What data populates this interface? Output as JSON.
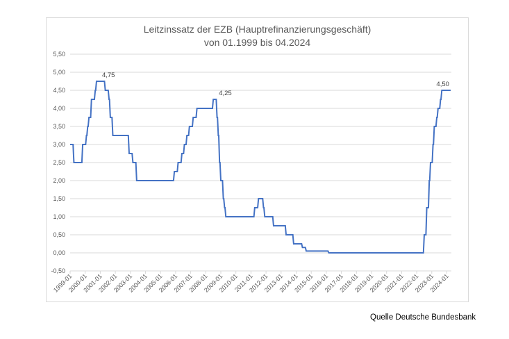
{
  "chart_data": {
    "type": "line",
    "title": "Leitzinssatz der EZB (Hauptrefinanzierungsgeschäft)",
    "subtitle": "von 01.1999 bis 04.2024",
    "xlabel": "",
    "ylabel": "",
    "ylim": [
      -0.5,
      5.5
    ],
    "yticks": [
      "-0,50",
      "0,00",
      "0,50",
      "1,00",
      "1,50",
      "2,00",
      "2,50",
      "3,00",
      "3,50",
      "4,00",
      "4,50",
      "5,00",
      "5,50"
    ],
    "ytick_values": [
      -0.5,
      0,
      0.5,
      1,
      1.5,
      2,
      2.5,
      3,
      3.5,
      4,
      4.5,
      5,
      5.5
    ],
    "xticks": [
      "1999-01",
      "2000-01",
      "2001-01",
      "2002-01",
      "2003-01",
      "2004-01",
      "2005-01",
      "2006-01",
      "2007-01",
      "2008-01",
      "2009-01",
      "2010-01",
      "2011-01",
      "2012-01",
      "2013-01",
      "2014-01",
      "2015-01",
      "2016-01",
      "2017-01",
      "2018-01",
      "2019-01",
      "2020-01",
      "2021-01",
      "2022-01",
      "2023-01",
      "2024-01"
    ],
    "grid": "horizontal",
    "legend": "none",
    "line_color": "#4472c4",
    "series": [
      {
        "name": "Leitzinssatz",
        "points": [
          [
            "1999-01",
            3.0
          ],
          [
            "1999-04",
            2.5
          ],
          [
            "1999-11",
            3.0
          ],
          [
            "2000-02",
            3.25
          ],
          [
            "2000-03",
            3.5
          ],
          [
            "2000-04",
            3.75
          ],
          [
            "2000-06",
            4.25
          ],
          [
            "2000-09",
            4.5
          ],
          [
            "2000-10",
            4.75
          ],
          [
            "2001-05",
            4.5
          ],
          [
            "2001-08",
            4.25
          ],
          [
            "2001-09",
            3.75
          ],
          [
            "2001-11",
            3.25
          ],
          [
            "2002-12",
            2.75
          ],
          [
            "2003-03",
            2.5
          ],
          [
            "2003-06",
            2.0
          ],
          [
            "2005-12",
            2.25
          ],
          [
            "2006-03",
            2.5
          ],
          [
            "2006-06",
            2.75
          ],
          [
            "2006-08",
            3.0
          ],
          [
            "2006-10",
            3.25
          ],
          [
            "2006-12",
            3.5
          ],
          [
            "2007-03",
            3.75
          ],
          [
            "2007-06",
            4.0
          ],
          [
            "2008-07",
            4.25
          ],
          [
            "2008-10",
            3.75
          ],
          [
            "2008-11",
            3.25
          ],
          [
            "2008-12",
            2.5
          ],
          [
            "2009-01",
            2.0
          ],
          [
            "2009-03",
            1.5
          ],
          [
            "2009-04",
            1.25
          ],
          [
            "2009-05",
            1.0
          ],
          [
            "2011-04",
            1.25
          ],
          [
            "2011-07",
            1.5
          ],
          [
            "2011-11",
            1.25
          ],
          [
            "2011-12",
            1.0
          ],
          [
            "2012-07",
            0.75
          ],
          [
            "2013-05",
            0.5
          ],
          [
            "2013-11",
            0.25
          ],
          [
            "2014-06",
            0.15
          ],
          [
            "2014-09",
            0.05
          ],
          [
            "2016-03",
            0.0
          ],
          [
            "2022-07",
            0.5
          ],
          [
            "2022-09",
            1.25
          ],
          [
            "2022-11",
            2.0
          ],
          [
            "2022-12",
            2.5
          ],
          [
            "2023-02",
            3.0
          ],
          [
            "2023-03",
            3.5
          ],
          [
            "2023-05",
            3.75
          ],
          [
            "2023-06",
            4.0
          ],
          [
            "2023-08",
            4.25
          ],
          [
            "2023-09",
            4.5
          ],
          [
            "2024-04",
            4.5
          ]
        ]
      }
    ],
    "annotations": [
      {
        "label": "4,75",
        "x": "2000-10",
        "y": 4.75
      },
      {
        "label": "4,25",
        "x": "2008-07",
        "y": 4.25
      },
      {
        "label": "4,50",
        "x": "2024-04",
        "y": 4.5
      }
    ],
    "source": "Quelle Deutsche Bundesbank"
  }
}
